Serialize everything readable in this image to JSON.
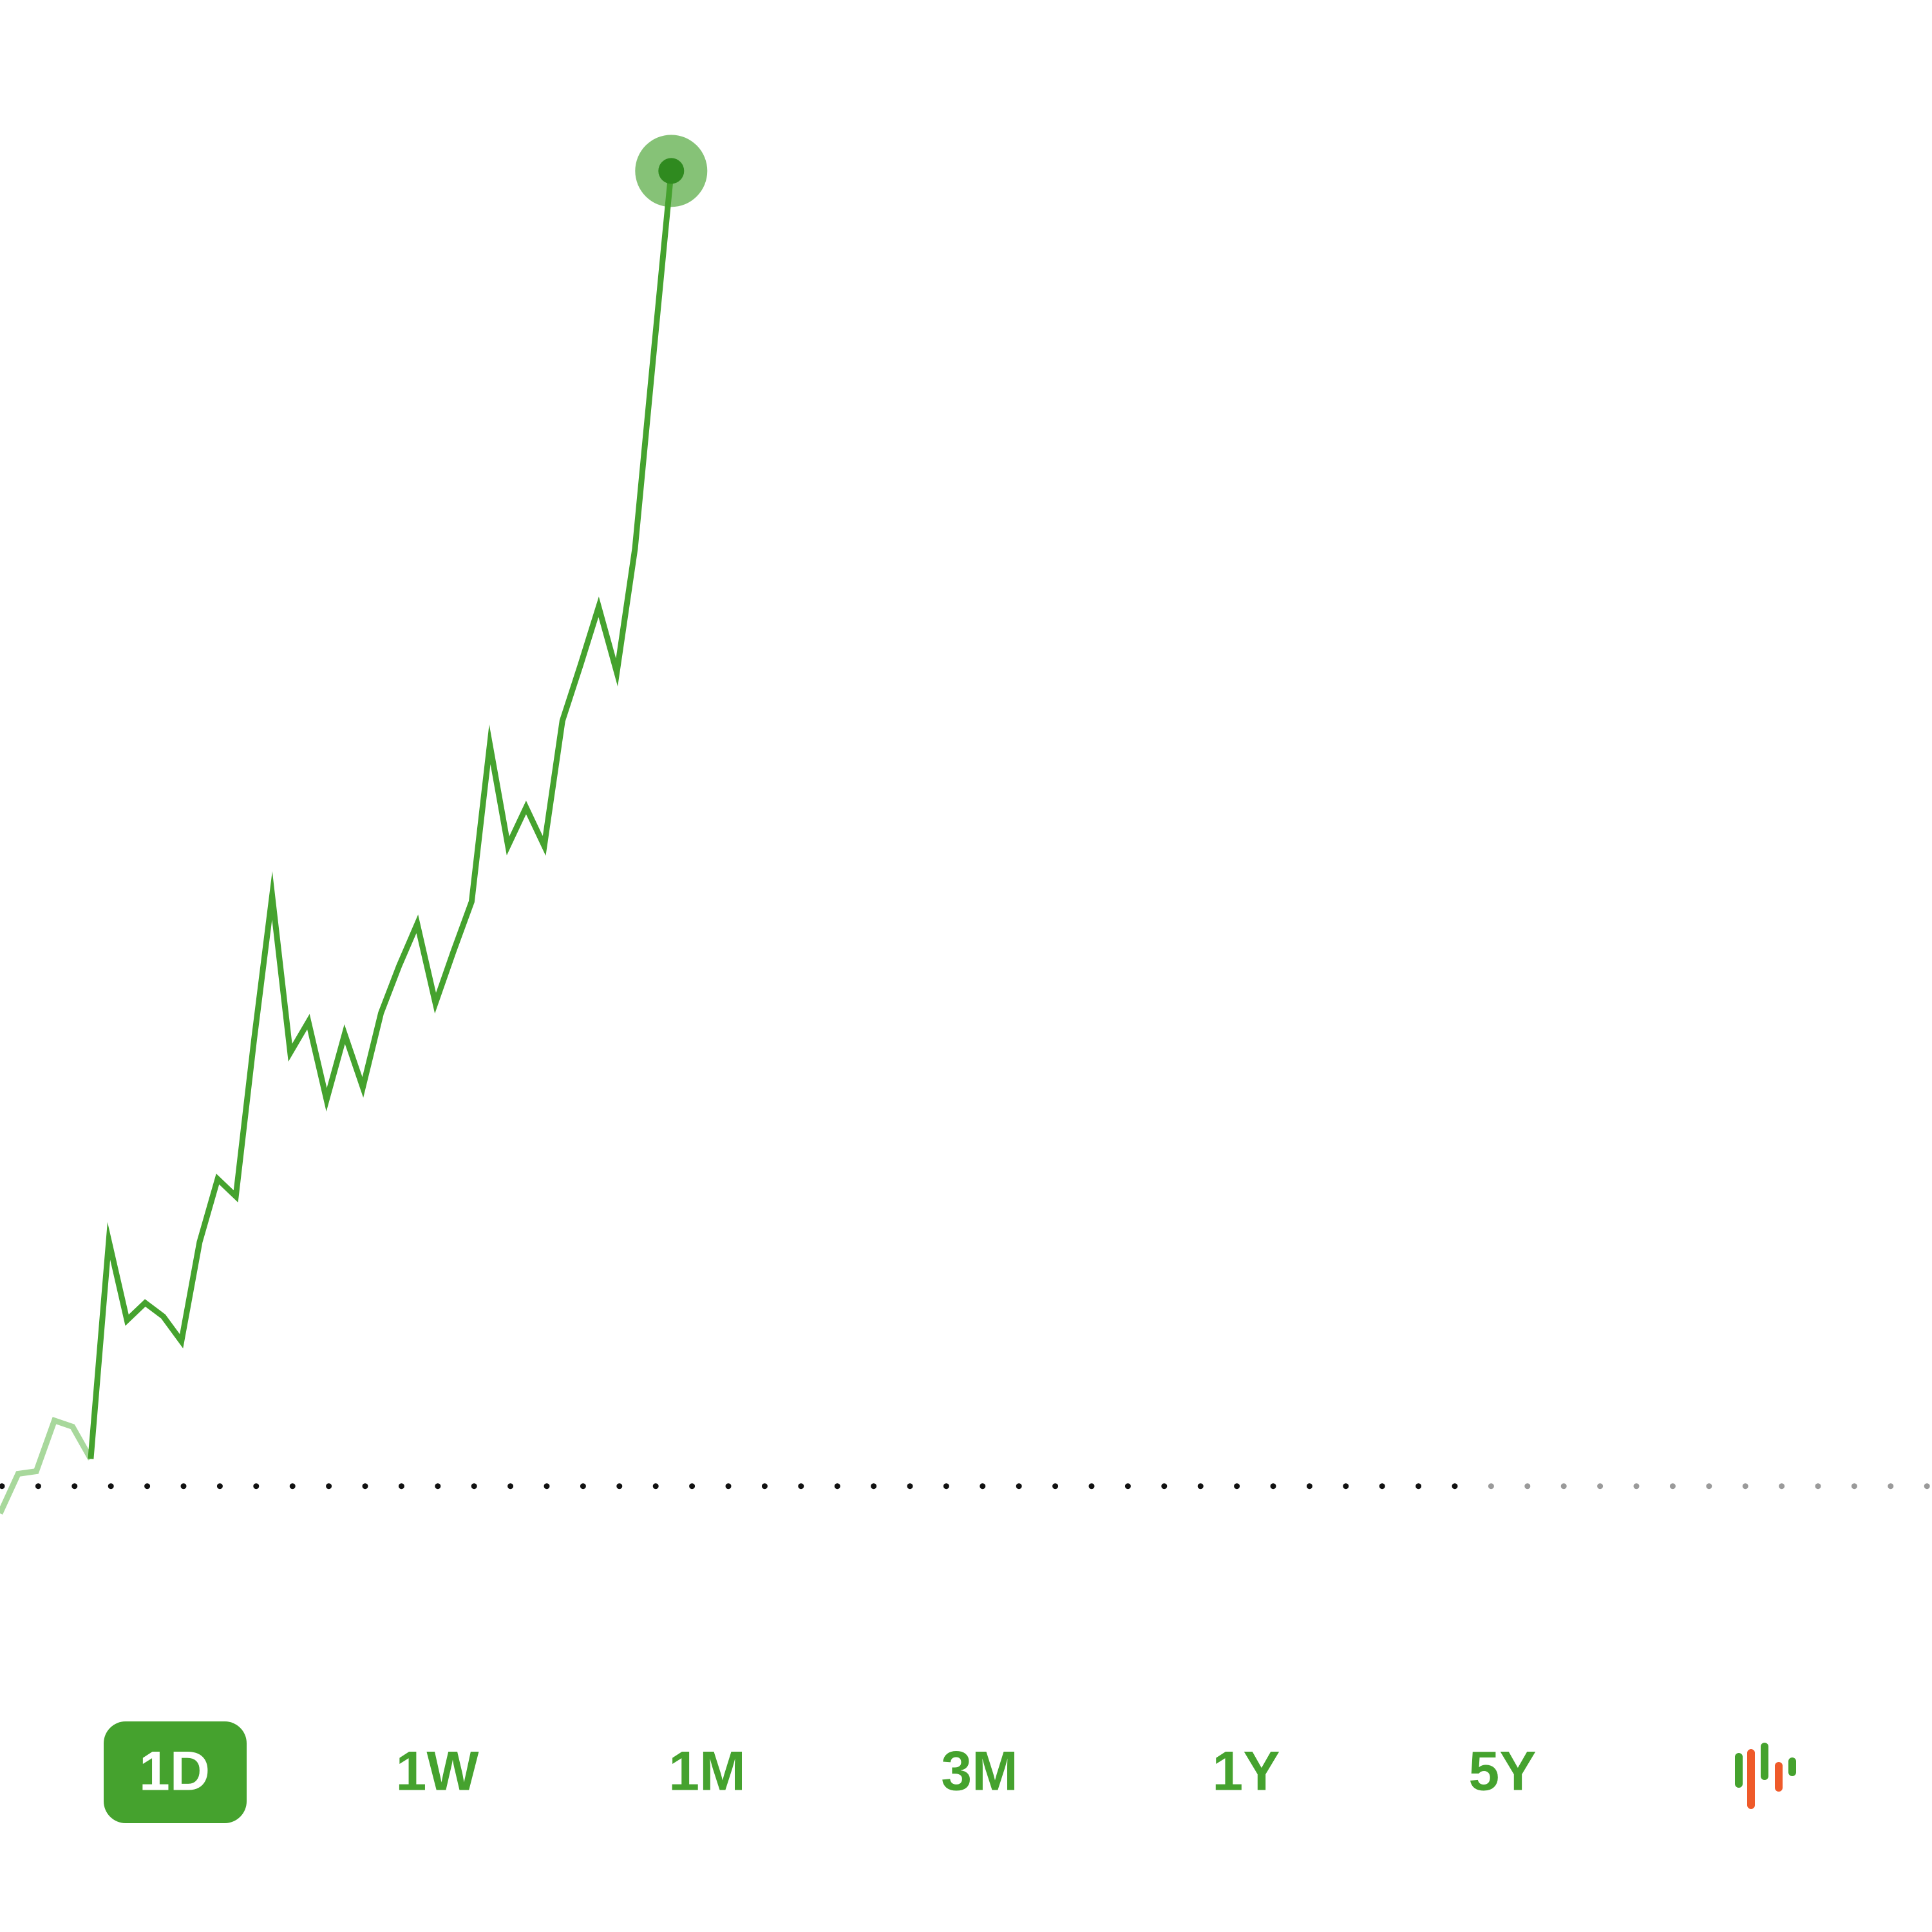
{
  "chart_data": {
    "type": "line",
    "categories": [
      null,
      null,
      null,
      null,
      null,
      null,
      null,
      null,
      null,
      null,
      null,
      null,
      null,
      null,
      null,
      null,
      null,
      null,
      null,
      null,
      null,
      null,
      null,
      null,
      null,
      null,
      null,
      null,
      null,
      null,
      null,
      null,
      null,
      null,
      null,
      null,
      null,
      null
    ],
    "series": [
      {
        "name": null,
        "color": "#a8d89c",
        "values": [
          -22,
          10,
          12,
          53,
          48,
          22,
          null,
          null,
          null,
          null,
          null,
          null,
          null,
          null,
          null,
          null,
          null,
          null,
          null,
          null,
          null,
          null,
          null,
          null,
          null,
          null,
          null,
          null,
          null,
          null,
          null,
          null,
          null,
          null,
          null,
          null,
          null,
          null
        ]
      },
      {
        "name": null,
        "color": "#45a22e",
        "values": [
          null,
          null,
          null,
          null,
          null,
          22,
          198,
          134,
          148,
          137,
          117,
          197,
          248,
          234,
          360,
          477,
          350,
          375,
          312,
          365,
          322,
          382,
          420,
          454,
          390,
          432,
          472,
          599,
          517,
          548,
          517,
          618,
          663,
          710,
          657,
          757,
          910,
          1062
        ]
      }
    ],
    "reference_line": 0,
    "ylim": [
      -100,
      1200
    ],
    "grid": false,
    "ranges": [
      "1D",
      "1W",
      "1M",
      "3M",
      "1Y",
      "5Y"
    ]
  }
}
